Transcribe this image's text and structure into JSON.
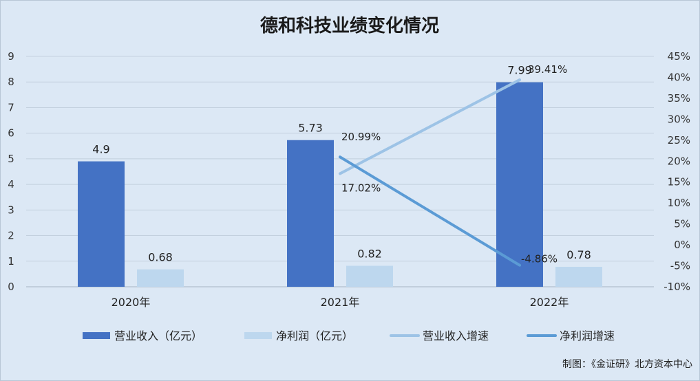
{
  "chart_data": {
    "type": "bar",
    "title": "德和科技业绩变化情况",
    "categories": [
      "2020年",
      "2021年",
      "2022年"
    ],
    "series": [
      {
        "name": "营业收入（亿元）",
        "kind": "bar",
        "axis": "left",
        "values": [
          4.9,
          5.73,
          7.99
        ],
        "labels": [
          "4.9",
          "5.73",
          "7.99"
        ],
        "color": "#4472c4"
      },
      {
        "name": "净利润（亿元）",
        "kind": "bar",
        "axis": "left",
        "values": [
          0.68,
          0.82,
          0.78
        ],
        "labels": [
          "0.68",
          "0.82",
          "0.78"
        ],
        "color": "#bdd7ee"
      },
      {
        "name": "营业收入增速",
        "kind": "line",
        "axis": "right",
        "values": [
          null,
          17.02,
          39.41
        ],
        "labels": [
          "",
          "17.02%",
          "39.41%"
        ],
        "color": "#9dc3e6"
      },
      {
        "name": "净利润增速",
        "kind": "line",
        "axis": "right",
        "values": [
          null,
          20.99,
          -4.86
        ],
        "labels": [
          "",
          "20.99%",
          "-4.86%"
        ],
        "color": "#5b9bd5"
      }
    ],
    "left_axis": {
      "min": 0,
      "max": 9,
      "step": 1,
      "ticks": [
        "0",
        "1",
        "2",
        "3",
        "4",
        "5",
        "6",
        "7",
        "8",
        "9"
      ]
    },
    "right_axis": {
      "min": -10,
      "max": 45,
      "step": 5,
      "ticks": [
        "-10%",
        "-5%",
        "0%",
        "5%",
        "10%",
        "15%",
        "20%",
        "25%",
        "30%",
        "35%",
        "40%",
        "45%"
      ]
    },
    "grid": true,
    "legend_position": "bottom"
  },
  "source_note": "制图：《金证研》北方资本中心"
}
